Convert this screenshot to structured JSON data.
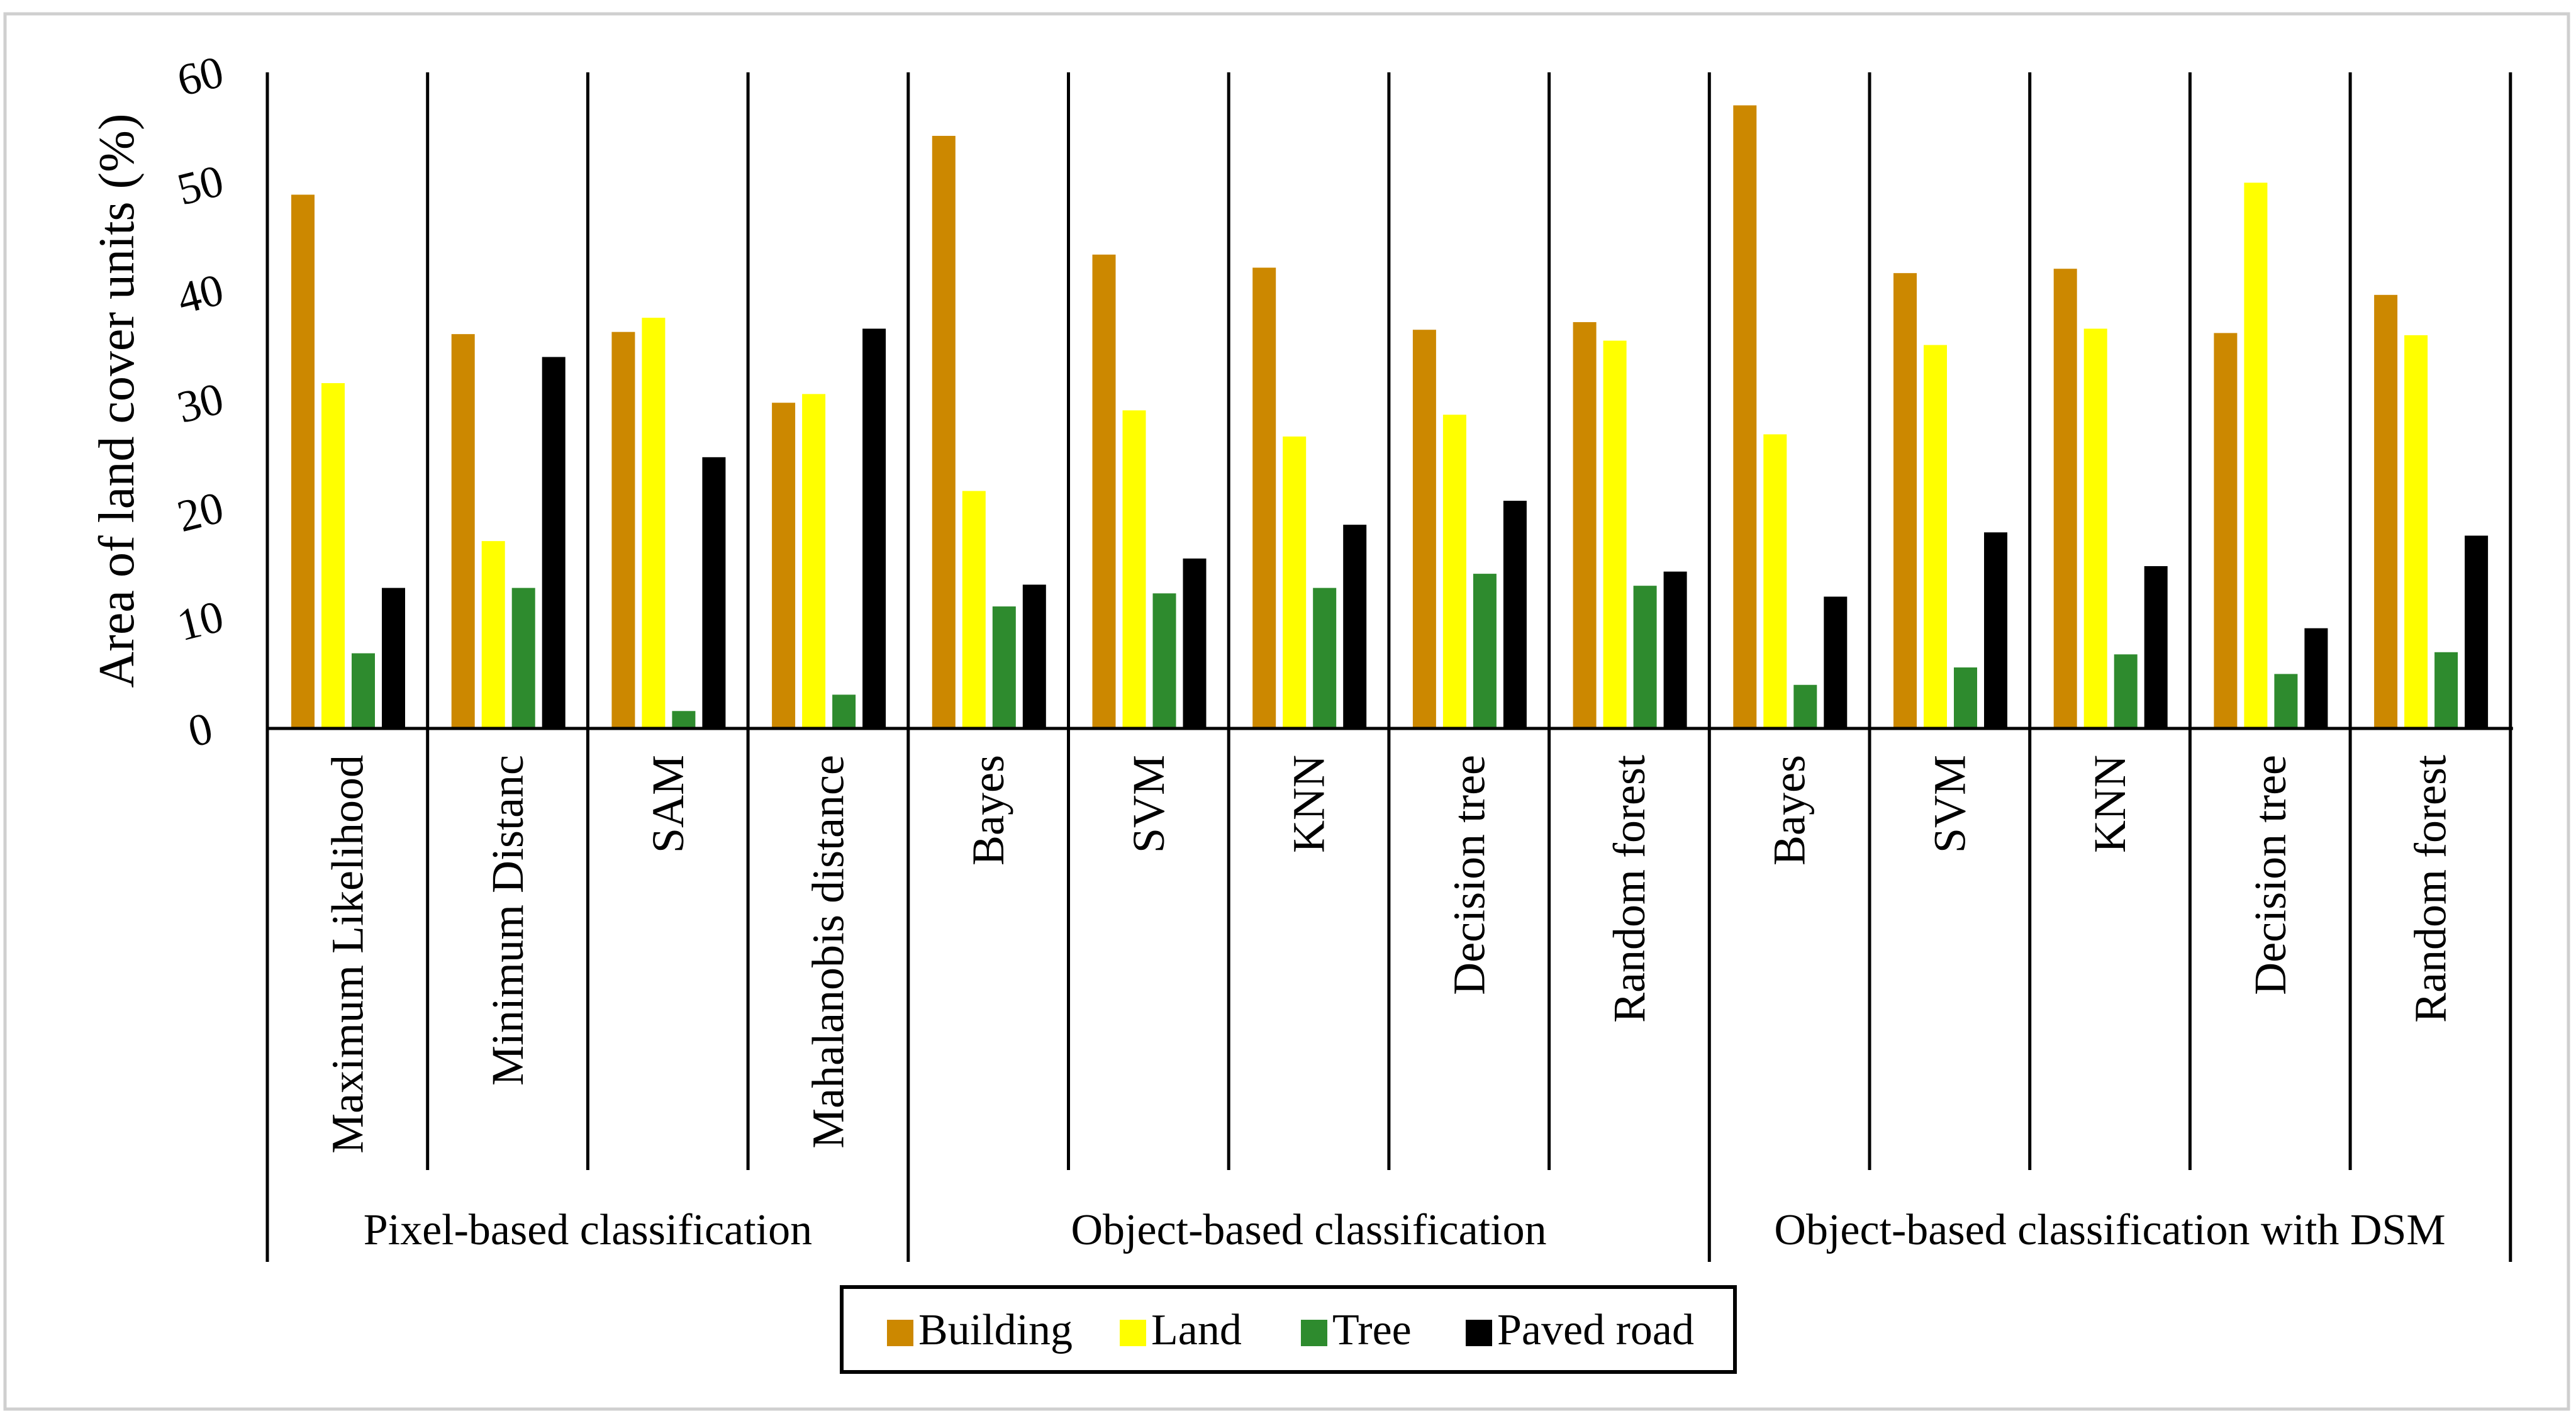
{
  "colors": {
    "Building": "#cc8800",
    "Land": "#ffff00",
    "Tree": "#2e8b2e",
    "Paved road": "#000000"
  },
  "chart_data": {
    "type": "bar",
    "title": "",
    "xlabel": "",
    "ylabel": "Area of land cover units (%)",
    "ylim": [
      0,
      60
    ],
    "yticks": [
      0,
      10,
      20,
      30,
      40,
      50,
      60
    ],
    "legend_position": "bottom-center",
    "groups": [
      {
        "name": "Pixel-based classification",
        "categories": [
          "Maximum Likelihood",
          "Minimum Distanc",
          "SAM",
          "Mahalanobis distance"
        ]
      },
      {
        "name": "Object-based classification",
        "categories": [
          "Bayes",
          "SVM",
          "KNN",
          "Decision tree",
          "Random forest"
        ]
      },
      {
        "name": "Object-based classification with DSM",
        "categories": [
          "Bayes",
          "SVM",
          "KNN",
          "Decision tree",
          "Random forest"
        ]
      }
    ],
    "categories": [
      "Maximum Likelihood",
      "Minimum Distanc",
      "SAM",
      "Mahalanobis distance",
      "Bayes",
      "SVM",
      "KNN",
      "Decision tree",
      "Random forest",
      "Bayes",
      "SVM",
      "KNN",
      "Decision tree",
      "Random forest"
    ],
    "series": [
      {
        "name": "Building",
        "values": [
          49.0,
          36.2,
          36.4,
          29.9,
          54.4,
          43.5,
          42.3,
          36.6,
          37.3,
          57.2,
          41.8,
          42.2,
          36.3,
          39.8
        ]
      },
      {
        "name": "Land",
        "values": [
          31.7,
          17.2,
          37.7,
          30.7,
          21.8,
          29.2,
          26.8,
          28.8,
          35.6,
          27.0,
          35.2,
          36.7,
          50.1,
          36.1
        ]
      },
      {
        "name": "Tree",
        "values": [
          6.9,
          12.9,
          1.6,
          3.1,
          11.2,
          12.4,
          12.9,
          14.2,
          13.1,
          4.0,
          5.6,
          6.8,
          5.0,
          7.0
        ]
      },
      {
        "name": "Paved road",
        "values": [
          12.9,
          34.1,
          24.9,
          36.7,
          13.2,
          15.6,
          18.7,
          20.9,
          14.4,
          12.1,
          18.0,
          14.9,
          9.2,
          17.7
        ]
      }
    ]
  }
}
